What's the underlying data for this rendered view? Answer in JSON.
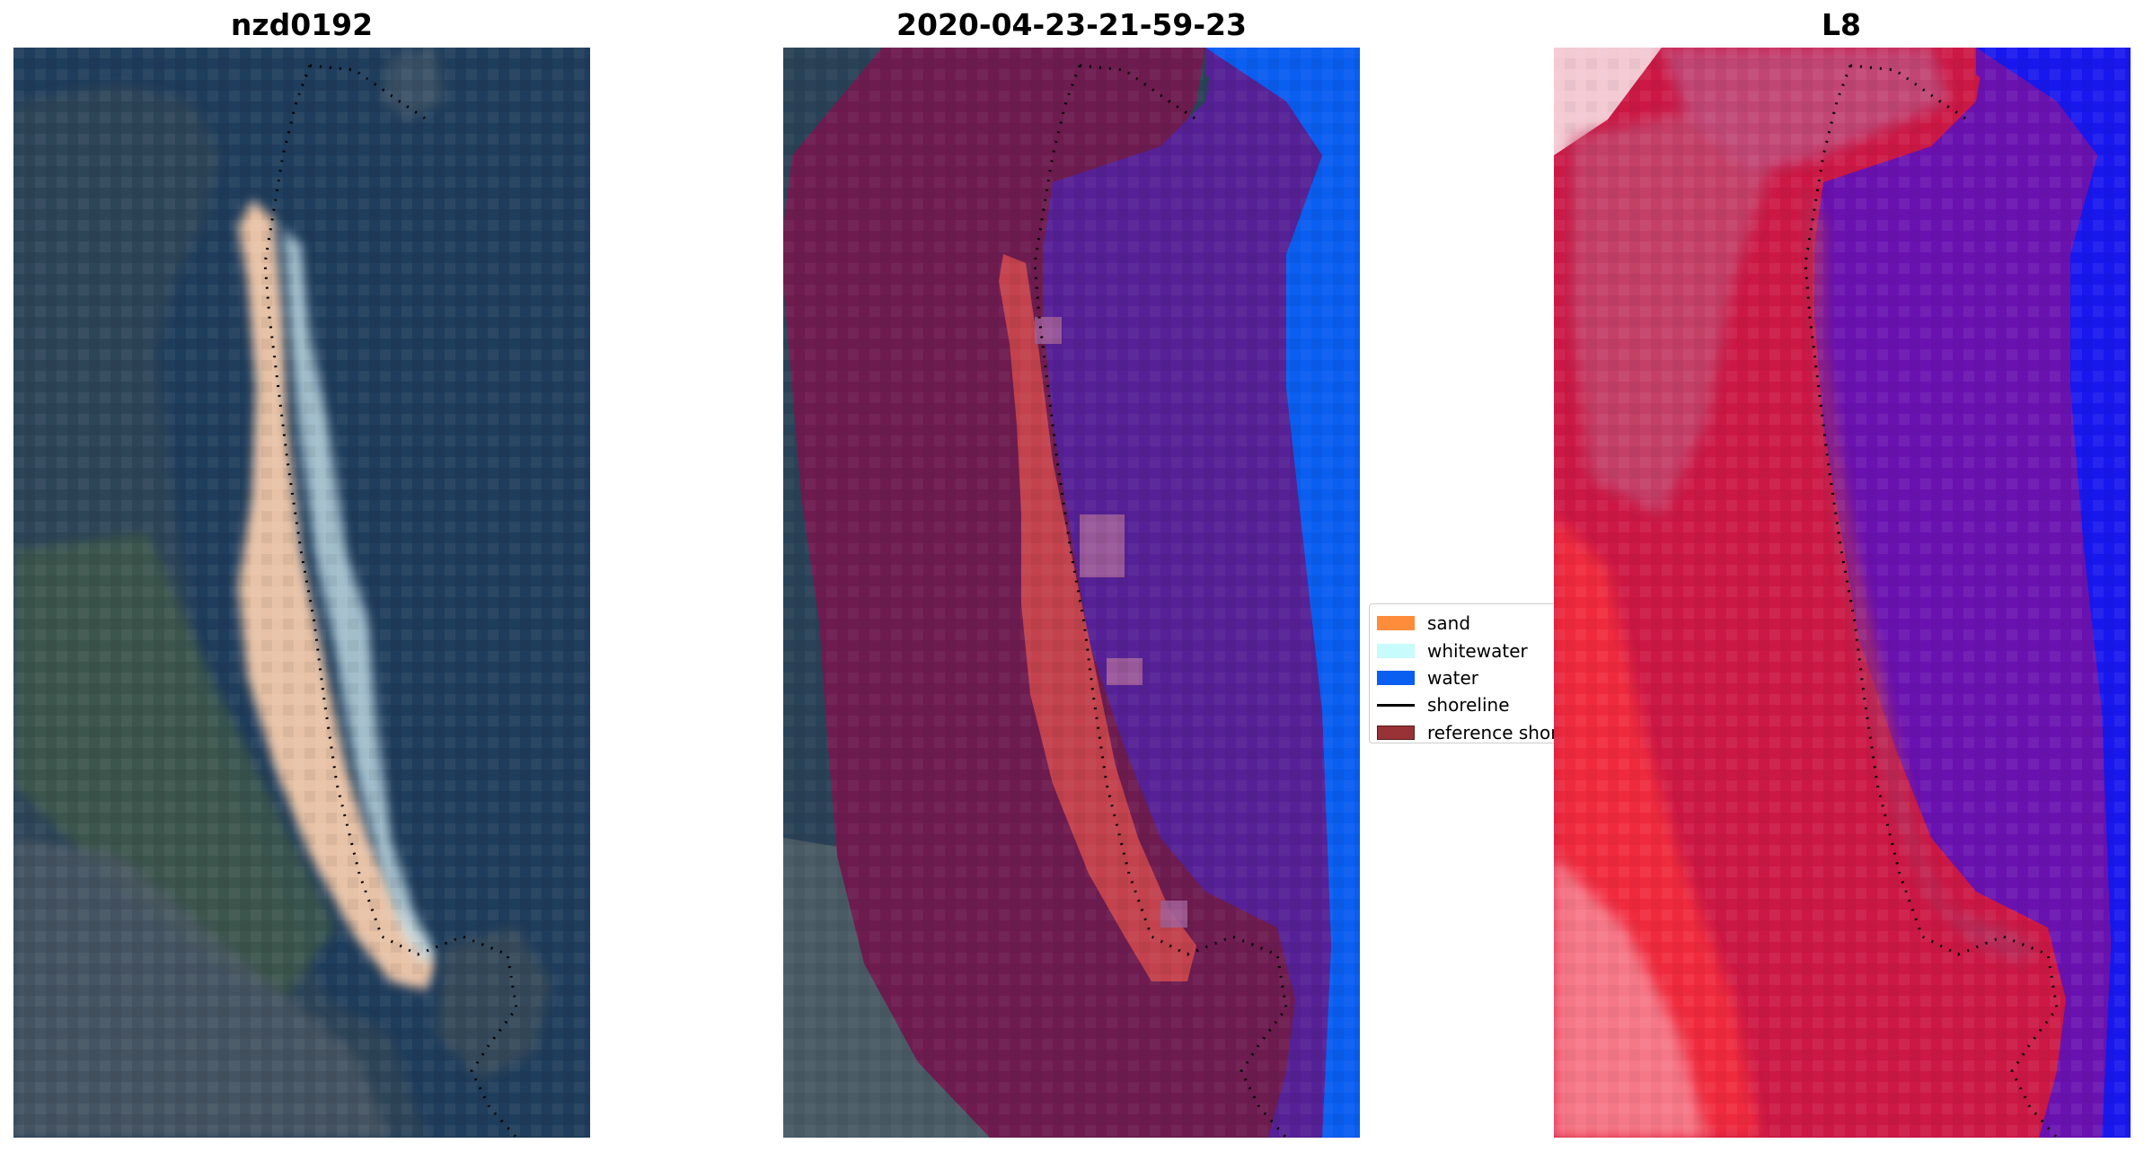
{
  "panels": [
    {
      "title": "nzd0192",
      "kind": "rgb"
    },
    {
      "title": "2020-04-23-21-59-23",
      "kind": "classified"
    },
    {
      "title": "L8",
      "kind": "index"
    }
  ],
  "legend": {
    "items": [
      {
        "label": "sand",
        "color": "#ff8c3a",
        "type": "patch"
      },
      {
        "label": "whitewater",
        "color": "#c8fbfb",
        "type": "patch"
      },
      {
        "label": "water",
        "color": "#0a5ef0",
        "type": "patch"
      },
      {
        "label": "shoreline",
        "color": "#000000",
        "type": "line"
      },
      {
        "label": "reference shoreline buffer",
        "color": "#983236",
        "type": "patch"
      }
    ]
  },
  "colors": {
    "rgb_water": "#1e3f60",
    "rgb_land": "#34485a",
    "rgb_veg": "#4a6150",
    "rgb_sand": "#e9c5aa",
    "rgb_surf": "#cfeaf2",
    "class_buffer": "#6e1c50",
    "class_water_buffer": "#562196",
    "class_water": "#0a5ef0",
    "class_sand": "#c3424d",
    "index_land": "#cc1845",
    "index_land_bright": "#f02a3c",
    "index_water_buffer": "#6a12b0",
    "index_water": "#1818ee",
    "index_edge": "#f3c9d2"
  }
}
